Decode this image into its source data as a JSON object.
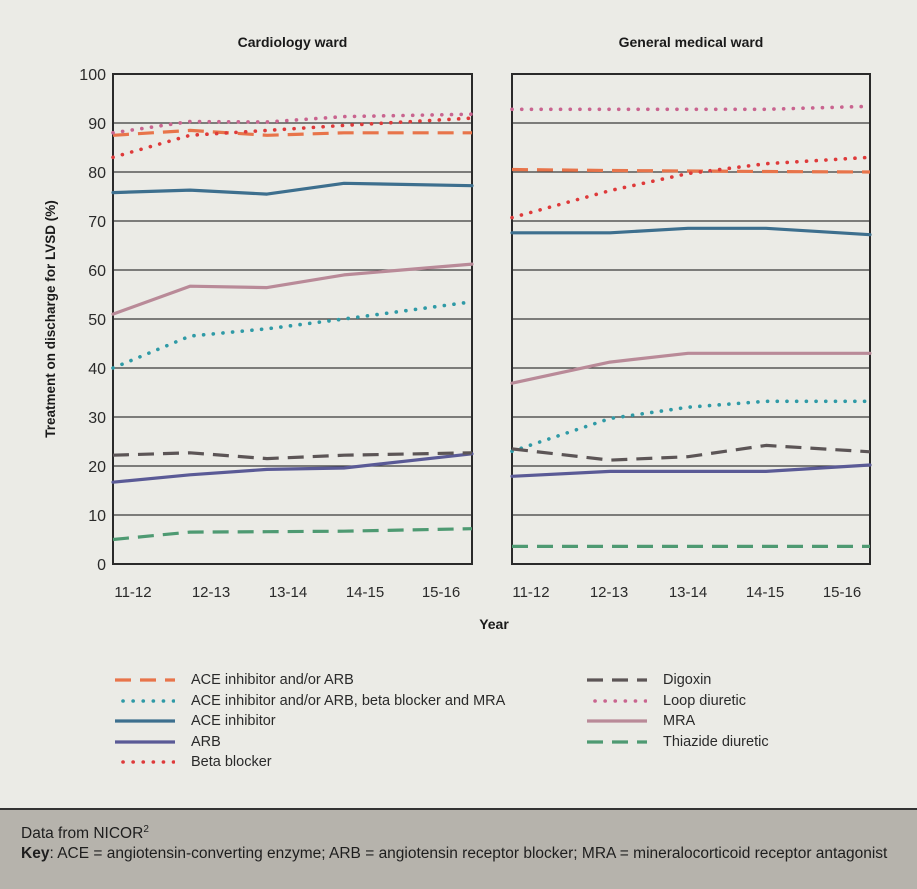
{
  "chart_data": [
    {
      "type": "line",
      "title": "Cardiology ward",
      "xlabel": "Year",
      "ylabel": "Treatment on discharge for LVSD (%)",
      "categories": [
        "11-12",
        "12-13",
        "13-14",
        "14-15",
        "15-16"
      ],
      "ylim": [
        0,
        100
      ],
      "yticks": [
        0,
        10,
        20,
        30,
        40,
        50,
        60,
        70,
        80,
        90,
        100
      ],
      "grid": true,
      "series": [
        {
          "name": "ACE inhibitor and/or ARB",
          "values": [
            87.5,
            88.5,
            87.5,
            88,
            88
          ]
        },
        {
          "name": "ACE inhibitor and/or ARB, beta blocker and MRA",
          "values": [
            40,
            46.5,
            48,
            50,
            53.5
          ]
        },
        {
          "name": "ACE inhibitor",
          "values": [
            75.8,
            76.3,
            75.5,
            77.7,
            77.2
          ]
        },
        {
          "name": "ARB",
          "values": [
            16.7,
            18.2,
            19.3,
            19.6,
            22.5
          ]
        },
        {
          "name": "Beta blocker",
          "values": [
            83,
            87.5,
            88.5,
            89.5,
            91
          ]
        },
        {
          "name": "Digoxin",
          "values": [
            22.2,
            22.7,
            21.5,
            22.2,
            22.7
          ]
        },
        {
          "name": "Loop diuretic",
          "values": [
            88,
            90.3,
            90.2,
            91.3,
            91.8
          ]
        },
        {
          "name": "MRA",
          "values": [
            51,
            56.7,
            56.4,
            59,
            61.2
          ]
        },
        {
          "name": "Thiazide diuretic",
          "values": [
            5,
            6.5,
            6.6,
            6.7,
            7.2
          ]
        }
      ]
    },
    {
      "type": "line",
      "title": "General medical ward",
      "xlabel": "Year",
      "ylabel": "Treatment on discharge for LVSD (%)",
      "categories": [
        "11-12",
        "12-13",
        "13-14",
        "14-15",
        "15-16"
      ],
      "ylim": [
        0,
        100
      ],
      "yticks": [
        0,
        10,
        20,
        30,
        40,
        50,
        60,
        70,
        80,
        90,
        100
      ],
      "grid": true,
      "series": [
        {
          "name": "ACE inhibitor and/or ARB",
          "values": [
            80.5,
            80.3,
            80.2,
            80.1,
            80
          ]
        },
        {
          "name": "ACE inhibitor and/or ARB, beta blocker and MRA",
          "values": [
            23,
            29.7,
            32,
            33.2,
            33.2
          ]
        },
        {
          "name": "ACE inhibitor",
          "values": [
            67.6,
            67.6,
            68.5,
            68.5,
            67.2
          ]
        },
        {
          "name": "ARB",
          "values": [
            17.9,
            18.9,
            18.9,
            18.9,
            20.2
          ]
        },
        {
          "name": "Beta blocker",
          "values": [
            70.7,
            76.2,
            79.7,
            81.7,
            83
          ]
        },
        {
          "name": "Digoxin",
          "values": [
            23.5,
            21.2,
            21.9,
            24.2,
            22.9
          ]
        },
        {
          "name": "Loop diuretic",
          "values": [
            92.8,
            92.8,
            92.8,
            92.8,
            93.4
          ]
        },
        {
          "name": "MRA",
          "values": [
            36.9,
            41.2,
            43,
            43,
            43
          ]
        },
        {
          "name": "Thiazide diuretic",
          "values": [
            3.6,
            3.6,
            3.6,
            3.6,
            3.6
          ]
        }
      ]
    }
  ],
  "series_styles": [
    {
      "name": "ACE inhibitor and/or ARB",
      "color": "#e8744a",
      "style": "dashed"
    },
    {
      "name": "ACE inhibitor and/or ARB, beta blocker and MRA",
      "color": "#2f9aa6",
      "style": "dotted"
    },
    {
      "name": "ACE inhibitor",
      "color": "#3d6f8e",
      "style": "solid"
    },
    {
      "name": "ARB",
      "color": "#5a5a96",
      "style": "solid"
    },
    {
      "name": "Beta blocker",
      "color": "#de3a3a",
      "style": "dotted"
    },
    {
      "name": "Digoxin",
      "color": "#5c5556",
      "style": "dashed"
    },
    {
      "name": "Loop diuretic",
      "color": "#c9648f",
      "style": "dotted"
    },
    {
      "name": "MRA",
      "color": "#b98a98",
      "style": "solid"
    },
    {
      "name": "Thiazide diuretic",
      "color": "#4e9a72",
      "style": "dashed"
    }
  ],
  "legend": {
    "placement": "bottom",
    "left_column": [
      {
        "label": "ACE inhibitor and/or ARB",
        "color": "#e8744a",
        "style": "dashed"
      },
      {
        "label": "ACE inhibitor and/or ARB, beta blocker and MRA",
        "color": "#2f9aa6",
        "style": "dotted"
      },
      {
        "label": "ACE inhibitor",
        "color": "#3d6f8e",
        "style": "solid"
      },
      {
        "label": "ARB",
        "color": "#5a5a96",
        "style": "solid"
      },
      {
        "label": "Beta blocker",
        "color": "#de3a3a",
        "style": "dotted"
      }
    ],
    "right_column": [
      {
        "label": "Digoxin",
        "color": "#5c5556",
        "style": "dashed"
      },
      {
        "label": "Loop diuretic",
        "color": "#c9648f",
        "style": "dotted"
      },
      {
        "label": "MRA",
        "color": "#b98a98",
        "style": "solid"
      },
      {
        "label": "Thiazide diuretic",
        "color": "#4e9a72",
        "style": "dashed"
      }
    ]
  },
  "footer": {
    "source_text": "Data from NICOR",
    "source_superscript": "2",
    "key_label": "Key",
    "key_text": ": ACE = angiotensin-converting enzyme; ARB = angiotensin receptor blocker; MRA = mineralocorticoid receptor antagonist"
  }
}
